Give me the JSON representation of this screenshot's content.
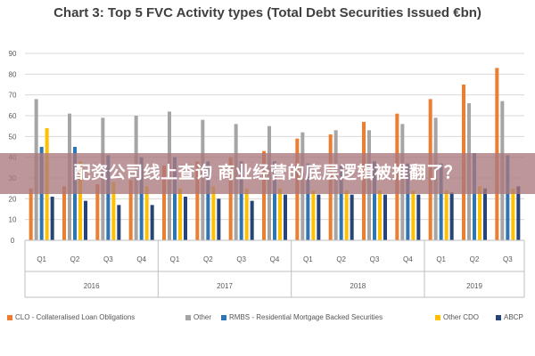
{
  "chart_data": {
    "type": "bar",
    "title": "Chart 3: Top 5 FVC Activity types (Total Debt Securities Issued €bn)",
    "ylim": [
      0,
      90
    ],
    "yticks": [
      0,
      10,
      20,
      30,
      40,
      50,
      60,
      70,
      80,
      90
    ],
    "categories": [
      "Q1",
      "Q2",
      "Q3",
      "Q4",
      "Q1",
      "Q2",
      "Q3",
      "Q4",
      "Q1",
      "Q2",
      "Q3",
      "Q4",
      "Q1",
      "Q2",
      "Q3"
    ],
    "years": [
      {
        "label": "2016",
        "quarters": 4
      },
      {
        "label": "2017",
        "quarters": 4
      },
      {
        "label": "2018",
        "quarters": 4
      },
      {
        "label": "2019",
        "quarters": 3
      }
    ],
    "series": [
      {
        "name": "CLO - Collateralised Loan Obligations",
        "color": "#ED7D31",
        "values": [
          25,
          26,
          27,
          29,
          36,
          38,
          40,
          43,
          49,
          51,
          57,
          61,
          68,
          75,
          83
        ]
      },
      {
        "name": "Other",
        "color": "#A5A5A5",
        "values": [
          68,
          61,
          59,
          60,
          62,
          58,
          56,
          55,
          52,
          53,
          53,
          56,
          59,
          66,
          67
        ]
      },
      {
        "name": "RMBS - Residential Mortgage Backed Securities",
        "color": "#2E75B6",
        "values": [
          45,
          45,
          41,
          40,
          40,
          38,
          38,
          38,
          37,
          36,
          38,
          37,
          37,
          42,
          41
        ]
      },
      {
        "name": "Other CDO",
        "color": "#FFC000",
        "values": [
          54,
          38,
          28,
          26,
          25,
          26,
          25,
          25,
          24,
          24,
          24,
          24,
          24,
          26,
          25
        ]
      },
      {
        "name": "ABCP",
        "color": "#264478",
        "values": [
          21,
          19,
          17,
          17,
          21,
          20,
          19,
          22,
          22,
          22,
          22,
          22,
          23,
          25,
          26
        ]
      }
    ],
    "grid": true,
    "legend_position": "bottom"
  },
  "overlay": {
    "banner_text": "配资公司线上查询 商业经营的底层逻辑被推翻了？"
  }
}
